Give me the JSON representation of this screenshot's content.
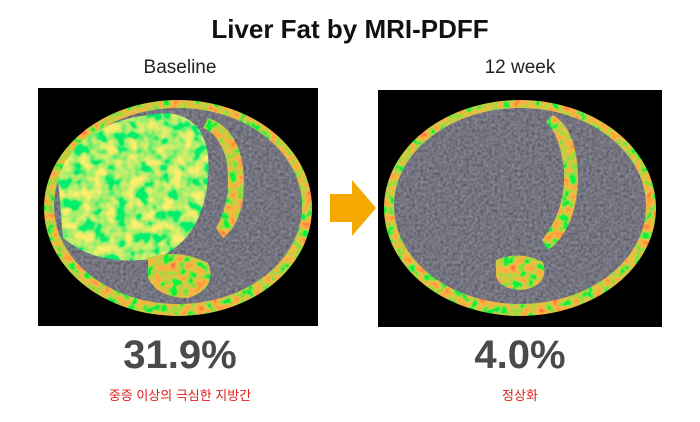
{
  "title": "Liver Fat by MRI-PDFF",
  "panels": [
    {
      "label": "Baseline",
      "value": "31.9%",
      "note": "중증 이상의 극심한 지방간"
    },
    {
      "label": "12 week",
      "value": "4.0%",
      "note": "정상화"
    }
  ]
}
